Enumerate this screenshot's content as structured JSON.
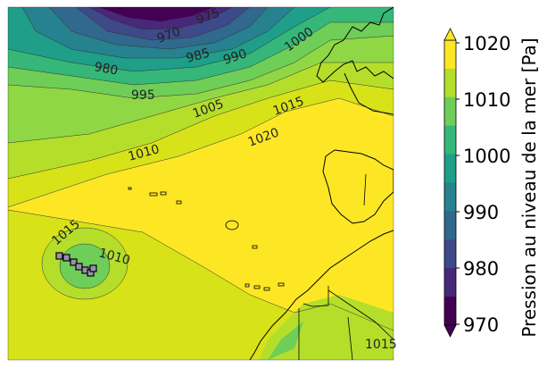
{
  "map": {
    "contour_labels": [
      {
        "id": "975",
        "text": "975"
      },
      {
        "id": "970",
        "text": "970"
      },
      {
        "id": "980",
        "text": "980"
      },
      {
        "id": "985",
        "text": "985"
      },
      {
        "id": "990",
        "text": "990"
      },
      {
        "id": "1000",
        "text": "1000"
      },
      {
        "id": "995",
        "text": "995"
      },
      {
        "id": "1005",
        "text": "1005"
      },
      {
        "id": "1015a",
        "text": "1015"
      },
      {
        "id": "1010a",
        "text": "1010"
      },
      {
        "id": "1020",
        "text": "1020"
      },
      {
        "id": "1015b",
        "text": "1015"
      },
      {
        "id": "1010b",
        "text": "1010"
      },
      {
        "id": "1015c",
        "text": "1015"
      }
    ]
  },
  "colorbar": {
    "title": "Pression au niveau de la mer [Pa]",
    "ticks": [
      "1020",
      "1010",
      "1000",
      "990",
      "980",
      "970"
    ],
    "levels_colors": [
      "#fde725",
      "#b5de2b",
      "#6ece58",
      "#35b779",
      "#1f9e89",
      "#26828e",
      "#31688e",
      "#3e4989",
      "#482878",
      "#440154"
    ]
  }
}
